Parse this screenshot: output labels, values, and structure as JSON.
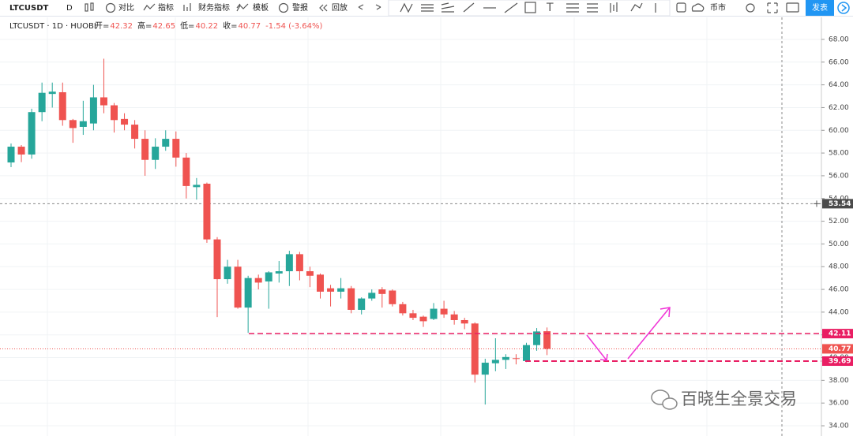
{
  "toolbar": {
    "symbol": "LTCUSDT",
    "interval": "D",
    "items": [
      "对比",
      "指标",
      "财务指标",
      "模板",
      "警报",
      "回放"
    ],
    "text_tool": "T",
    "currency": "币市",
    "publish": "发表"
  },
  "watermark": "百晓生全景交易",
  "chart_data": {
    "type": "candlestick",
    "title": "LTCUSDT · 1D · HUOBI",
    "ohlc_legend": [
      {
        "label": "开=",
        "value": "42.32"
      },
      {
        "label": "高=",
        "value": "42.65"
      },
      {
        "label": "低=",
        "value": "40.22"
      },
      {
        "label": "收=",
        "value": "40.77"
      }
    ],
    "change": "-1.54 (-3.64%)",
    "up_color": "#26a69a",
    "down_color": "#ef5350",
    "open": [
      57.17,
      58.56,
      57.87,
      61.6,
      63.2,
      63.35,
      60.9,
      60.3,
      60.6,
      62.9,
      62.2,
      61.0,
      60.5,
      59.25,
      57.4,
      58.56,
      59.25,
      57.6,
      55.0,
      55.3,
      50.4,
      46.9,
      48.0,
      44.4,
      47.0,
      46.7,
      47.4,
      47.6,
      49.1,
      47.6,
      47.3,
      46.1,
      45.8,
      46.1,
      44.2,
      45.2,
      46.0,
      45.9,
      44.7,
      43.9,
      43.6,
      43.4,
      44.3,
      43.8,
      43.3,
      43.0,
      38.5,
      39.5,
      39.8,
      39.95,
      39.7,
      41.1,
      42.32
    ],
    "high": [
      58.84,
      58.7,
      61.9,
      64.2,
      64.2,
      64.2,
      61.0,
      62.6,
      64.0,
      66.3,
      62.4,
      61.5,
      60.9,
      60.0,
      59.3,
      60.0,
      59.9,
      58.0,
      55.8,
      55.4,
      50.6,
      48.6,
      48.6,
      47.2,
      47.3,
      47.6,
      48.5,
      49.4,
      49.3,
      48.0,
      47.4,
      46.4,
      47.0,
      46.3,
      45.3,
      46.0,
      46.2,
      46.0,
      44.9,
      44.2,
      43.7,
      44.8,
      45.0,
      44.1,
      43.5,
      43.1,
      39.9,
      41.7,
      40.3,
      40.3,
      41.3,
      42.6,
      42.65
    ],
    "low": [
      56.76,
      57.2,
      57.5,
      60.8,
      62.0,
      60.4,
      58.9,
      59.6,
      60.0,
      61.5,
      59.8,
      60.0,
      58.4,
      56.0,
      56.6,
      58.2,
      56.8,
      54.0,
      53.9,
      50.1,
      43.57,
      46.5,
      44.3,
      42.18,
      46.0,
      44.3,
      46.6,
      46.3,
      46.8,
      46.2,
      45.2,
      44.5,
      45.2,
      43.9,
      43.8,
      45.0,
      44.4,
      44.5,
      43.7,
      43.3,
      42.7,
      43.3,
      43.5,
      42.9,
      42.5,
      37.8,
      35.87,
      38.8,
      39.0,
      39.4,
      39.6,
      40.6,
      40.22
    ],
    "close": [
      58.56,
      57.87,
      61.6,
      63.3,
      63.4,
      60.9,
      60.2,
      60.8,
      62.9,
      62.2,
      60.9,
      60.5,
      59.25,
      57.4,
      58.56,
      59.25,
      57.6,
      55.1,
      55.2,
      50.4,
      46.9,
      48.0,
      44.4,
      47.0,
      46.6,
      47.5,
      47.6,
      49.1,
      47.6,
      47.2,
      45.8,
      45.8,
      46.1,
      44.2,
      45.2,
      45.7,
      45.6,
      44.7,
      43.9,
      43.5,
      43.2,
      44.3,
      43.8,
      43.3,
      43.0,
      38.5,
      39.55,
      39.8,
      40.05,
      39.9,
      41.1,
      42.3,
      40.77
    ],
    "ylim": [
      33.1,
      69.94
    ],
    "yticks": [
      {
        "value": 34,
        "label": "34.00"
      },
      {
        "value": 36,
        "label": "36.00"
      },
      {
        "value": 38,
        "label": "38.00"
      },
      {
        "value": 40,
        "label": "40.00"
      },
      {
        "value": 42,
        "label": "42.00"
      },
      {
        "value": 44,
        "label": "44.00"
      },
      {
        "value": 46,
        "label": "46.00"
      },
      {
        "value": 48,
        "label": "48.00"
      },
      {
        "value": 50,
        "label": "50.00"
      },
      {
        "value": 52,
        "label": "52.00"
      },
      {
        "value": 54,
        "label": "54.00"
      },
      {
        "value": 56,
        "label": "56.00"
      },
      {
        "value": 58,
        "label": "58.00"
      },
      {
        "value": 60,
        "label": "60.00"
      },
      {
        "value": 62,
        "label": "62.00"
      },
      {
        "value": 64,
        "label": "64.00"
      },
      {
        "value": 66,
        "label": "66.00"
      },
      {
        "value": 68,
        "label": "68.00"
      }
    ],
    "grid": true,
    "levels": [
      {
        "value": 42.11,
        "color": "#e91e63"
      },
      {
        "value": 39.69,
        "color": "#e91e63"
      }
    ],
    "last_price": 40.77,
    "last_color": "#ef5350",
    "crosshair": 53.54
  }
}
